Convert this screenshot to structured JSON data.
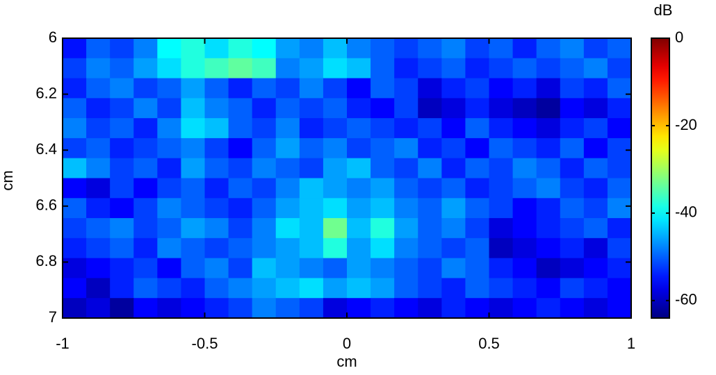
{
  "chart_data": {
    "type": "heatmap",
    "xlabel": "cm",
    "ylabel": "cm",
    "colorbar_label": "dB",
    "colormap": "jet",
    "xlim": [
      -1,
      1
    ],
    "ylim": [
      6,
      7
    ],
    "y_reversed": true,
    "xticks": [
      -1,
      -0.5,
      0,
      0.5,
      1
    ],
    "yticks": [
      6,
      6.2,
      6.4,
      6.6,
      6.8,
      7
    ],
    "clim": [
      -64,
      0
    ],
    "cticks": [
      0,
      -20,
      -40,
      -60
    ],
    "z": [
      [
        -55,
        -50,
        -52,
        -48,
        -40,
        -38,
        -42,
        -38,
        -40,
        -46,
        -48,
        -44,
        -48,
        -50,
        -52,
        -50,
        -48,
        -52,
        -50,
        -54,
        -50,
        -48,
        -52,
        -50
      ],
      [
        -52,
        -48,
        -50,
        -46,
        -42,
        -38,
        -36,
        -34,
        -36,
        -48,
        -46,
        -42,
        -44,
        -50,
        -54,
        -52,
        -50,
        -54,
        -52,
        -50,
        -52,
        -50,
        -48,
        -52
      ],
      [
        -54,
        -50,
        -48,
        -52,
        -50,
        -46,
        -50,
        -54,
        -50,
        -52,
        -48,
        -52,
        -56,
        -50,
        -52,
        -58,
        -54,
        -52,
        -56,
        -54,
        -58,
        -52,
        -54,
        -50
      ],
      [
        -50,
        -54,
        -52,
        -48,
        -52,
        -44,
        -48,
        -50,
        -54,
        -50,
        -52,
        -50,
        -54,
        -56,
        -52,
        -60,
        -58,
        -54,
        -58,
        -60,
        -62,
        -56,
        -58,
        -54
      ],
      [
        -48,
        -52,
        -50,
        -54,
        -48,
        -42,
        -44,
        -50,
        -52,
        -48,
        -54,
        -52,
        -50,
        -52,
        -54,
        -52,
        -56,
        -50,
        -54,
        -56,
        -58,
        -54,
        -52,
        -56
      ],
      [
        -52,
        -50,
        -54,
        -52,
        -50,
        -48,
        -52,
        -56,
        -50,
        -46,
        -50,
        -48,
        -52,
        -50,
        -48,
        -54,
        -52,
        -56,
        -50,
        -52,
        -54,
        -50,
        -56,
        -52
      ],
      [
        -44,
        -48,
        -52,
        -50,
        -54,
        -46,
        -50,
        -52,
        -48,
        -50,
        -52,
        -46,
        -44,
        -50,
        -52,
        -48,
        -54,
        -50,
        -52,
        -48,
        -50,
        -54,
        -50,
        -52
      ],
      [
        -56,
        -58,
        -52,
        -56,
        -52,
        -50,
        -54,
        -50,
        -52,
        -48,
        -44,
        -46,
        -48,
        -46,
        -50,
        -52,
        -50,
        -54,
        -52,
        -50,
        -48,
        -52,
        -54,
        -50
      ],
      [
        -50,
        -54,
        -56,
        -52,
        -48,
        -50,
        -52,
        -54,
        -50,
        -46,
        -44,
        -42,
        -46,
        -44,
        -48,
        -50,
        -46,
        -50,
        -52,
        -56,
        -54,
        -50,
        -52,
        -48
      ],
      [
        -52,
        -50,
        -48,
        -52,
        -50,
        -46,
        -48,
        -52,
        -48,
        -42,
        -44,
        -33,
        -44,
        -38,
        -46,
        -50,
        -48,
        -52,
        -58,
        -56,
        -54,
        -52,
        -50,
        -54
      ],
      [
        -54,
        -52,
        -50,
        -54,
        -48,
        -50,
        -52,
        -50,
        -48,
        -46,
        -44,
        -38,
        -46,
        -42,
        -48,
        -50,
        -52,
        -50,
        -60,
        -58,
        -56,
        -54,
        -58,
        -52
      ],
      [
        -58,
        -56,
        -54,
        -52,
        -56,
        -50,
        -48,
        -52,
        -44,
        -46,
        -48,
        -50,
        -46,
        -48,
        -50,
        -52,
        -48,
        -50,
        -54,
        -56,
        -60,
        -58,
        -56,
        -54
      ],
      [
        -56,
        -60,
        -54,
        -50,
        -52,
        -54,
        -50,
        -48,
        -46,
        -44,
        -42,
        -46,
        -44,
        -46,
        -50,
        -52,
        -54,
        -50,
        -52,
        -54,
        -56,
        -52,
        -54,
        -56
      ],
      [
        -60,
        -58,
        -62,
        -56,
        -58,
        -56,
        -54,
        -52,
        -48,
        -50,
        -52,
        -58,
        -56,
        -54,
        -56,
        -58,
        -54,
        -56,
        -58,
        -56,
        -54,
        -56,
        -58,
        -56
      ]
    ]
  }
}
